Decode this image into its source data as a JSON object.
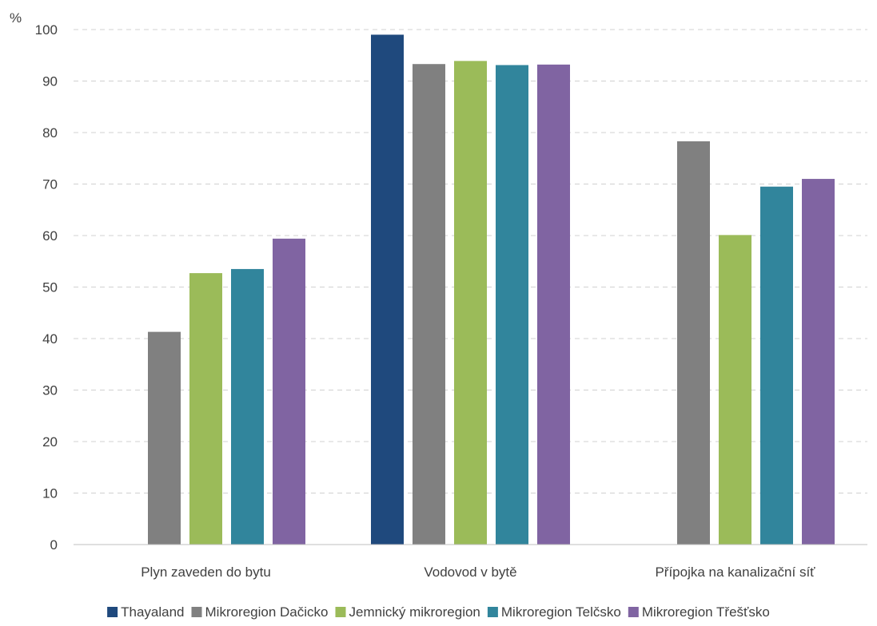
{
  "chart_data": {
    "type": "bar",
    "title": "",
    "xlabel": "",
    "ylabel": "%",
    "ylim": [
      0,
      100
    ],
    "yticks": [
      0,
      10,
      20,
      30,
      40,
      50,
      60,
      70,
      80,
      90,
      100
    ],
    "grid": true,
    "legend_position": "bottom",
    "categories": [
      "Plyn zaveden do bytu",
      "Vodovod v bytě",
      "Přípojka na kanalizační síť"
    ],
    "series": [
      {
        "name": "Thayaland",
        "color": "#1f497d",
        "values": [
          null,
          99.0,
          null
        ]
      },
      {
        "name": "Mikroregion Dačicko",
        "color": "#808080",
        "values": [
          41.3,
          93.3,
          78.3
        ]
      },
      {
        "name": "Jemnický mikroregion",
        "color": "#9bbb59",
        "values": [
          52.7,
          93.9,
          60.1
        ]
      },
      {
        "name": "Mikroregion Telčsko",
        "color": "#31859c",
        "values": [
          53.5,
          93.1,
          69.5
        ]
      },
      {
        "name": "Mikroregion Třešťsko",
        "color": "#8064a2",
        "values": [
          59.4,
          93.2,
          71.0
        ]
      }
    ]
  }
}
